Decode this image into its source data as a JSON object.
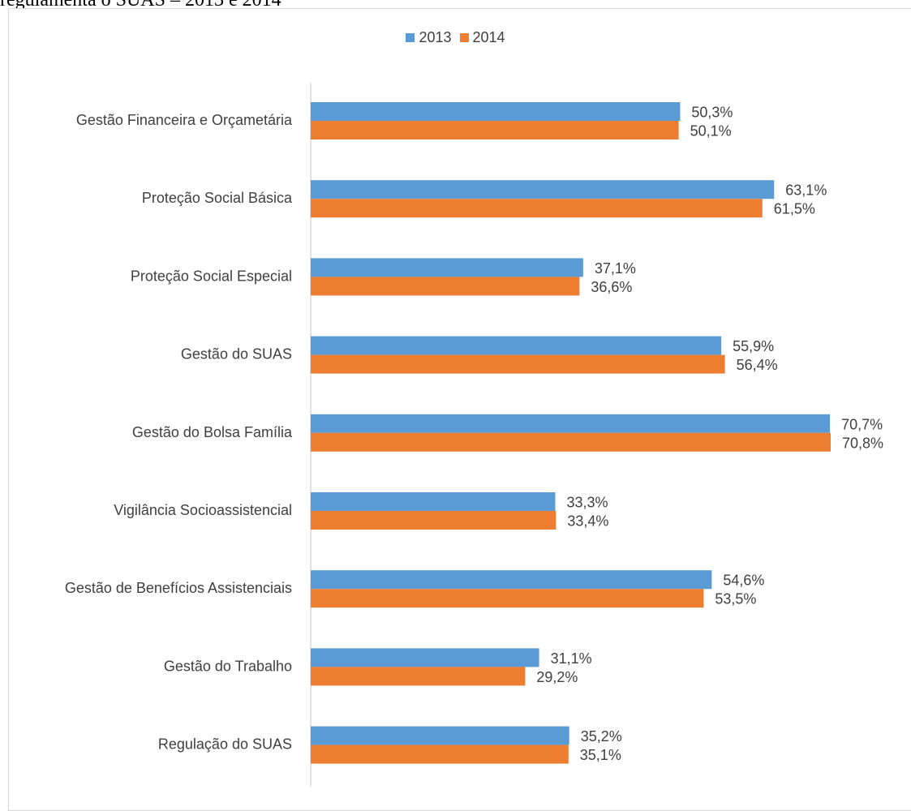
{
  "caption": "regulamenta o SUAS – 2013 e 2014",
  "chart_data": {
    "type": "bar",
    "orientation": "horizontal",
    "categories": [
      "Gestão Financeira e Orçametária",
      "Proteção Social Básica",
      "Proteção Social Especial",
      "Gestão do SUAS",
      "Gestão do Bolsa Família",
      "Vigilância Socioassistencial",
      "Gestão de Benefícios Assistenciais",
      "Gestão do Trabalho",
      "Regulação do SUAS"
    ],
    "series": [
      {
        "name": "2013",
        "color": "#5b9bd5",
        "values": [
          50.3,
          63.1,
          37.1,
          55.9,
          70.7,
          33.3,
          54.6,
          31.1,
          35.2
        ],
        "labels": [
          "50,3%",
          "63,1%",
          "37,1%",
          "55,9%",
          "70,7%",
          "33,3%",
          "54,6%",
          "31,1%",
          "35,2%"
        ]
      },
      {
        "name": "2014",
        "color": "#ed7d31",
        "values": [
          50.1,
          61.5,
          36.6,
          56.4,
          70.8,
          33.4,
          53.5,
          29.2,
          35.1
        ],
        "labels": [
          "50,1%",
          "61,5%",
          "36,6%",
          "56,4%",
          "70,8%",
          "33,4%",
          "53,5%",
          "29,2%",
          "35,1%"
        ]
      }
    ],
    "legend_position": "top-center",
    "grid": false,
    "xlim": [
      0,
      70.8
    ]
  }
}
